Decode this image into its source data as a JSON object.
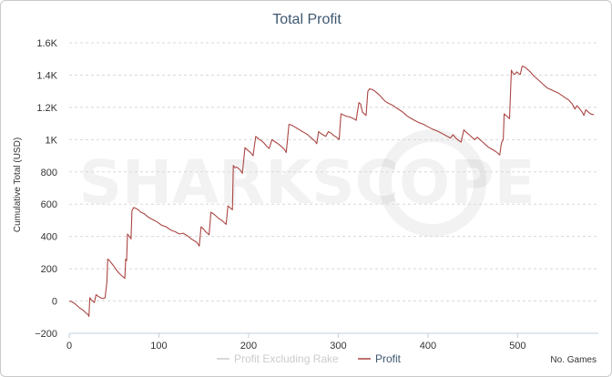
{
  "chart_data": {
    "type": "line",
    "title": "Total Profit",
    "ylabel": "Cumulative Total (USD)",
    "xlabel": "No. Games",
    "xlim": [
      0,
      590
    ],
    "ylim": [
      -200,
      1600
    ],
    "x_ticks": [
      0,
      100,
      200,
      300,
      400,
      500
    ],
    "y_ticks": [
      -200,
      0,
      200,
      400,
      600,
      800,
      1000,
      1200,
      1400,
      1600
    ],
    "y_tick_labels": [
      "−200",
      "0",
      "200",
      "400",
      "600",
      "800",
      "1K",
      "1.2K",
      "1.4K",
      "1.6K"
    ],
    "grid": "horizontal dashed",
    "legend_position": "bottom-center",
    "watermark": "SHARKSCOPE",
    "series": [
      {
        "name": "Profit Excluding Rake",
        "color": "#cccccc",
        "visible": false,
        "points": []
      },
      {
        "name": "Profit",
        "color": "#aa4643",
        "visible": true,
        "points": [
          [
            0,
            0
          ],
          [
            3,
            -5
          ],
          [
            6,
            -15
          ],
          [
            9,
            -30
          ],
          [
            12,
            -45
          ],
          [
            15,
            -55
          ],
          [
            18,
            -70
          ],
          [
            21,
            -85
          ],
          [
            22,
            -95
          ],
          [
            23,
            20
          ],
          [
            25,
            5
          ],
          [
            27,
            -5
          ],
          [
            28,
            -10
          ],
          [
            30,
            40
          ],
          [
            32,
            30
          ],
          [
            35,
            20
          ],
          [
            38,
            15
          ],
          [
            40,
            20
          ],
          [
            42,
            120
          ],
          [
            43,
            260
          ],
          [
            45,
            250
          ],
          [
            47,
            235
          ],
          [
            50,
            215
          ],
          [
            53,
            190
          ],
          [
            56,
            170
          ],
          [
            59,
            155
          ],
          [
            62,
            140
          ],
          [
            63,
            260
          ],
          [
            64,
            250
          ],
          [
            65,
            415
          ],
          [
            67,
            400
          ],
          [
            69,
            385
          ],
          [
            70,
            560
          ],
          [
            72,
            580
          ],
          [
            74,
            575
          ],
          [
            77,
            565
          ],
          [
            80,
            550
          ],
          [
            84,
            540
          ],
          [
            88,
            520
          ],
          [
            93,
            505
          ],
          [
            98,
            490
          ],
          [
            103,
            470
          ],
          [
            108,
            460
          ],
          [
            113,
            440
          ],
          [
            118,
            430
          ],
          [
            123,
            415
          ],
          [
            127,
            420
          ],
          [
            130,
            410
          ],
          [
            133,
            400
          ],
          [
            136,
            385
          ],
          [
            139,
            375
          ],
          [
            142,
            365
          ],
          [
            144,
            350
          ],
          [
            145,
            340
          ],
          [
            147,
            460
          ],
          [
            150,
            445
          ],
          [
            152,
            430
          ],
          [
            154,
            420
          ],
          [
            156,
            410
          ],
          [
            158,
            550
          ],
          [
            161,
            540
          ],
          [
            164,
            525
          ],
          [
            167,
            510
          ],
          [
            170,
            500
          ],
          [
            172,
            490
          ],
          [
            175,
            475
          ],
          [
            177,
            590
          ],
          [
            180,
            575
          ],
          [
            182,
            565
          ],
          [
            183,
            840
          ],
          [
            185,
            825
          ],
          [
            187,
            830
          ],
          [
            189,
            820
          ],
          [
            191,
            810
          ],
          [
            193,
            790
          ],
          [
            196,
            950
          ],
          [
            200,
            930
          ],
          [
            203,
            915
          ],
          [
            205,
            900
          ],
          [
            208,
            1020
          ],
          [
            211,
            1005
          ],
          [
            214,
            995
          ],
          [
            217,
            980
          ],
          [
            220,
            960
          ],
          [
            223,
            945
          ],
          [
            226,
            1000
          ],
          [
            230,
            985
          ],
          [
            234,
            970
          ],
          [
            237,
            955
          ],
          [
            240,
            940
          ],
          [
            242,
            920
          ],
          [
            245,
            1095
          ],
          [
            248,
            1090
          ],
          [
            251,
            1080
          ],
          [
            254,
            1070
          ],
          [
            257,
            1060
          ],
          [
            260,
            1050
          ],
          [
            263,
            1040
          ],
          [
            266,
            1030
          ],
          [
            269,
            1015
          ],
          [
            272,
            1000
          ],
          [
            274,
            990
          ],
          [
            276,
            975
          ],
          [
            278,
            1050
          ],
          [
            280,
            1040
          ],
          [
            283,
            1030
          ],
          [
            286,
            1020
          ],
          [
            289,
            1050
          ],
          [
            292,
            1040
          ],
          [
            295,
            1025
          ],
          [
            298,
            1015
          ],
          [
            301,
            1000
          ],
          [
            303,
            1160
          ],
          [
            305,
            1155
          ],
          [
            309,
            1145
          ],
          [
            313,
            1140
          ],
          [
            317,
            1130
          ],
          [
            320,
            1120
          ],
          [
            323,
            1230
          ],
          [
            325,
            1220
          ],
          [
            327,
            1170
          ],
          [
            329,
            1160
          ],
          [
            331,
            1150
          ],
          [
            333,
            1300
          ],
          [
            335,
            1315
          ],
          [
            338,
            1310
          ],
          [
            341,
            1300
          ],
          [
            344,
            1285
          ],
          [
            347,
            1270
          ],
          [
            350,
            1250
          ],
          [
            353,
            1235
          ],
          [
            356,
            1225
          ],
          [
            360,
            1215
          ],
          [
            364,
            1200
          ],
          [
            368,
            1185
          ],
          [
            372,
            1170
          ],
          [
            376,
            1150
          ],
          [
            380,
            1135
          ],
          [
            385,
            1120
          ],
          [
            390,
            1105
          ],
          [
            395,
            1095
          ],
          [
            400,
            1080
          ],
          [
            405,
            1065
          ],
          [
            410,
            1055
          ],
          [
            415,
            1040
          ],
          [
            420,
            1025
          ],
          [
            425,
            1010
          ],
          [
            428,
            1030
          ],
          [
            431,
            1010
          ],
          [
            434,
            995
          ],
          [
            437,
            985
          ],
          [
            440,
            1060
          ],
          [
            443,
            1045
          ],
          [
            446,
            1030
          ],
          [
            449,
            1015
          ],
          [
            452,
            1000
          ],
          [
            455,
            1015
          ],
          [
            458,
            1000
          ],
          [
            461,
            985
          ],
          [
            464,
            970
          ],
          [
            467,
            955
          ],
          [
            470,
            945
          ],
          [
            473,
            935
          ],
          [
            476,
            925
          ],
          [
            478,
            915
          ],
          [
            480,
            905
          ],
          [
            482,
            980
          ],
          [
            484,
            1000
          ],
          [
            485,
            1160
          ],
          [
            487,
            1150
          ],
          [
            489,
            1140
          ],
          [
            491,
            1130
          ],
          [
            493,
            1430
          ],
          [
            495,
            1410
          ],
          [
            497,
            1405
          ],
          [
            499,
            1420
          ],
          [
            501,
            1410
          ],
          [
            503,
            1405
          ],
          [
            505,
            1455
          ],
          [
            508,
            1450
          ],
          [
            511,
            1435
          ],
          [
            514,
            1420
          ],
          [
            517,
            1400
          ],
          [
            521,
            1380
          ],
          [
            525,
            1360
          ],
          [
            529,
            1340
          ],
          [
            533,
            1320
          ],
          [
            537,
            1310
          ],
          [
            541,
            1300
          ],
          [
            545,
            1290
          ],
          [
            549,
            1275
          ],
          [
            553,
            1260
          ],
          [
            557,
            1245
          ],
          [
            561,
            1220
          ],
          [
            564,
            1190
          ],
          [
            566,
            1210
          ],
          [
            568,
            1200
          ],
          [
            570,
            1185
          ],
          [
            572,
            1170
          ],
          [
            574,
            1150
          ],
          [
            576,
            1185
          ],
          [
            578,
            1175
          ],
          [
            580,
            1165
          ],
          [
            582,
            1158
          ],
          [
            585,
            1155
          ]
        ]
      }
    ]
  }
}
